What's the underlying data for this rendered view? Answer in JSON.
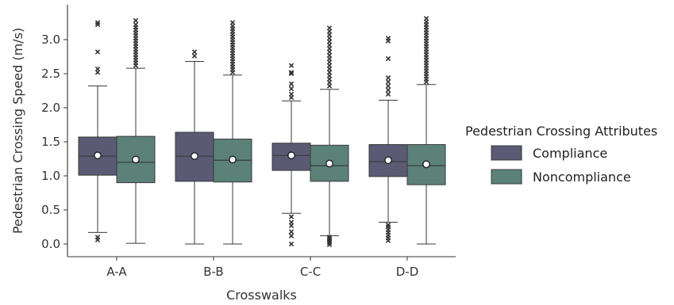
{
  "chart_data": {
    "type": "box",
    "title": "",
    "xlabel": "Crosswalks",
    "ylabel": "Pedestrian Crossing Speed (m/s)",
    "ylim": [
      -0.15,
      3.4
    ],
    "yticks": [
      0.0,
      0.5,
      1.0,
      1.5,
      2.0,
      2.5,
      3.0
    ],
    "ytick_labels": [
      "0.0",
      "0.5",
      "1.0",
      "1.5",
      "2.0",
      "2.5",
      "3.0"
    ],
    "categories": [
      "A-A",
      "B-B",
      "C-C",
      "D-D"
    ],
    "legend": {
      "title": "Pedestrian Crossing Attributes",
      "placement": "right",
      "entries": [
        "Compliance",
        "Noncompliance"
      ]
    },
    "series": [
      {
        "name": "Compliance",
        "color": "#5a5a74",
        "boxes": [
          {
            "whisker_low": 0.17,
            "q1": 1.01,
            "median": 1.29,
            "q3": 1.57,
            "whisker_high": 2.32,
            "mean": 1.3,
            "outliers": [
              0.06,
              0.1,
              2.52,
              2.57,
              2.82,
              3.22,
              3.25
            ]
          },
          {
            "whisker_low": 0.0,
            "q1": 0.92,
            "median": 1.29,
            "q3": 1.64,
            "whisker_high": 2.68,
            "mean": 1.29,
            "outliers": [
              2.76,
              2.82
            ]
          },
          {
            "whisker_low": 0.45,
            "q1": 1.08,
            "median": 1.3,
            "q3": 1.48,
            "whisker_high": 2.1,
            "mean": 1.3,
            "outliers": [
              0.0,
              0.12,
              0.18,
              0.27,
              0.32,
              0.4,
              2.15,
              2.2,
              2.28,
              2.35,
              2.5,
              2.52,
              2.62
            ]
          },
          {
            "whisker_low": 0.32,
            "q1": 0.99,
            "median": 1.21,
            "q3": 1.46,
            "whisker_high": 2.11,
            "mean": 1.23,
            "outliers": [
              0.05,
              0.09,
              0.13,
              0.17,
              0.21,
              0.25,
              0.28,
              2.2,
              2.26,
              2.32,
              2.38,
              2.44,
              2.72,
              2.98,
              3.02
            ]
          }
        ]
      },
      {
        "name": "Noncompliance",
        "color": "#5b8178",
        "boxes": [
          {
            "whisker_low": 0.01,
            "q1": 0.9,
            "median": 1.2,
            "q3": 1.58,
            "whisker_high": 2.58,
            "mean": 1.24,
            "outliers": [
              2.62,
              2.66,
              2.7,
              2.74,
              2.78,
              2.82,
              2.86,
              2.9,
              2.94,
              2.98,
              3.02,
              3.06,
              3.1,
              3.14,
              3.18,
              3.22,
              3.28
            ]
          },
          {
            "whisker_low": 0.0,
            "q1": 0.91,
            "median": 1.23,
            "q3": 1.54,
            "whisker_high": 2.48,
            "mean": 1.24,
            "outliers": [
              2.52,
              2.56,
              2.6,
              2.64,
              2.68,
              2.72,
              2.76,
              2.8,
              2.84,
              2.88,
              2.92,
              2.96,
              3.0,
              3.04,
              3.08,
              3.12,
              3.16,
              3.2,
              3.25
            ]
          },
          {
            "whisker_low": 0.12,
            "q1": 0.92,
            "median": 1.15,
            "q3": 1.45,
            "whisker_high": 2.27,
            "mean": 1.18,
            "outliers": [
              -0.01,
              0.02,
              0.04,
              0.06,
              0.08,
              0.1,
              2.32,
              2.37,
              2.42,
              2.47,
              2.52,
              2.57,
              2.62,
              2.67,
              2.72,
              2.77,
              2.82,
              2.87,
              2.92,
              2.97,
              3.02,
              3.07,
              3.12,
              3.17
            ]
          },
          {
            "whisker_low": 0.0,
            "q1": 0.87,
            "median": 1.15,
            "q3": 1.46,
            "whisker_high": 2.34,
            "mean": 1.17,
            "outliers": [
              2.38,
              2.42,
              2.46,
              2.5,
              2.54,
              2.58,
              2.62,
              2.66,
              2.7,
              2.74,
              2.78,
              2.82,
              2.86,
              2.9,
              2.94,
              2.98,
              3.02,
              3.06,
              3.1,
              3.14,
              3.18,
              3.22,
              3.26,
              3.31
            ]
          }
        ]
      }
    ]
  }
}
